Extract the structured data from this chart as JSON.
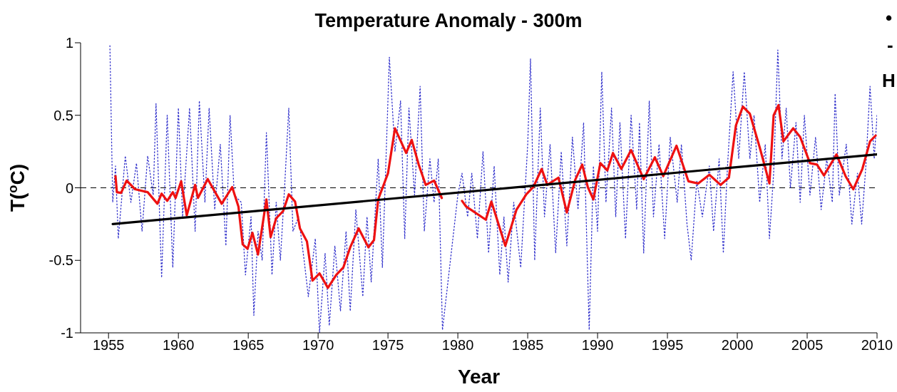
{
  "chart_data": {
    "type": "line",
    "title": "Temperature Anomaly - 300m",
    "xlabel": "Year",
    "ylabel": "T($^{o}$C)",
    "xlim": [
      1953,
      2010
    ],
    "xticks": [
      1955,
      1960,
      1965,
      1970,
      1975,
      1980,
      1985,
      1990,
      1995,
      2000,
      2005,
      2010
    ],
    "ylim": [
      -1,
      1
    ],
    "yticks": [
      -1,
      -0.5,
      0,
      0.5,
      1
    ],
    "grid": false,
    "marker": "none",
    "ref_lines": [
      {
        "axis": "y",
        "value": 0,
        "color": "#000000",
        "line_style": "dashed"
      }
    ],
    "annotations": [
      "•",
      "-",
      "H"
    ],
    "series": [
      {
        "type": "line",
        "color": "#3333cc",
        "line_style": "dotted",
        "x": [
          1955.1,
          1955.3,
          1955.5,
          1955.7,
          1956.2,
          1956.6,
          1957.0,
          1957.4,
          1957.8,
          1958.2,
          1958.4,
          1958.8,
          1959.2,
          1959.6,
          1960.0,
          1960.3,
          1960.8,
          1961.2,
          1961.5,
          1961.9,
          1962.2,
          1962.6,
          1963.0,
          1963.4,
          1963.7,
          1964.0,
          1964.5,
          1964.8,
          1965.2,
          1965.4,
          1965.7,
          1966.0,
          1966.3,
          1966.7,
          1967.0,
          1967.3,
          1967.6,
          1967.9,
          1968.2,
          1968.6,
          1969.0,
          1969.3,
          1969.8,
          1970.1,
          1970.5,
          1970.8,
          1971.2,
          1971.6,
          1972.0,
          1972.3,
          1972.7,
          1973.2,
          1973.5,
          1973.8,
          1974.3,
          1974.6,
          1975.1,
          1975.5,
          1975.9,
          1976.2,
          1976.5,
          1976.9,
          1977.3,
          1977.6,
          1978.0,
          1978.3,
          1978.6,
          1978.9,
          1980.0,
          1980.3,
          1980.7,
          1981.0,
          1981.4,
          1981.8,
          1982.2,
          1982.6,
          1983.0,
          1983.3,
          1983.6,
          1984.0,
          1984.5,
          1985.0,
          1985.2,
          1985.5,
          1985.9,
          1986.2,
          1986.6,
          1987.0,
          1987.4,
          1987.8,
          1988.2,
          1988.6,
          1989.0,
          1989.4,
          1989.7,
          1990.0,
          1990.3,
          1990.6,
          1991.0,
          1991.3,
          1991.6,
          1992.0,
          1992.4,
          1992.8,
          1993.0,
          1993.3,
          1993.7,
          1994.0,
          1994.4,
          1994.8,
          1995.2,
          1995.7,
          1996.0,
          1996.4,
          1996.7,
          1997.1,
          1997.5,
          1998.0,
          1998.3,
          1998.7,
          1999.0,
          1999.3,
          1999.7,
          2000.1,
          2000.5,
          2000.9,
          2001.2,
          2001.6,
          2002.0,
          2002.3,
          2002.6,
          2002.9,
          2003.2,
          2003.5,
          2003.8,
          2004.2,
          2004.5,
          2004.8,
          2005.2,
          2005.6,
          2006.0,
          2006.4,
          2006.8,
          2007.0,
          2007.3,
          2007.8,
          2008.2,
          2008.6,
          2008.9,
          2009.2,
          2009.5,
          2009.8,
          2010.0
        ],
        "values": [
          0.98,
          -0.1,
          0.15,
          -0.35,
          0.22,
          -0.1,
          0.17,
          -0.3,
          0.22,
          -0.05,
          0.58,
          -0.62,
          0.5,
          -0.55,
          0.55,
          -0.2,
          0.55,
          -0.3,
          0.6,
          -0.1,
          0.55,
          -0.15,
          0.3,
          -0.4,
          0.5,
          -0.05,
          -0.1,
          -0.6,
          -0.2,
          -0.88,
          -0.3,
          -0.5,
          0.38,
          -0.6,
          -0.1,
          -0.5,
          0.0,
          0.55,
          -0.3,
          -0.2,
          -0.5,
          -0.75,
          -0.35,
          -1.0,
          -0.45,
          -0.95,
          -0.4,
          -0.85,
          -0.3,
          -0.85,
          -0.15,
          -0.75,
          -0.2,
          -0.65,
          0.2,
          -0.55,
          0.9,
          0.25,
          0.6,
          -0.35,
          0.55,
          -0.05,
          0.7,
          -0.3,
          0.2,
          -0.1,
          0.2,
          -0.98,
          -0.05,
          0.1,
          -0.2,
          0.1,
          -0.35,
          0.25,
          -0.45,
          0.15,
          -0.6,
          -0.2,
          -0.65,
          -0.1,
          -0.55,
          0.3,
          0.89,
          -0.5,
          0.55,
          -0.2,
          0.3,
          -0.45,
          0.25,
          -0.4,
          0.35,
          -0.15,
          0.45,
          -0.98,
          0.15,
          -0.3,
          0.8,
          -0.1,
          0.55,
          -0.2,
          0.45,
          -0.35,
          0.5,
          -0.15,
          0.45,
          -0.45,
          0.6,
          -0.2,
          0.3,
          -0.35,
          0.35,
          -0.1,
          0.3,
          -0.25,
          -0.5,
          0.05,
          -0.2,
          0.15,
          -0.3,
          0.2,
          -0.45,
          0.15,
          0.8,
          0.2,
          0.8,
          0.2,
          0.5,
          -0.1,
          0.3,
          -0.35,
          0.1,
          0.95,
          0.2,
          0.55,
          0.0,
          0.45,
          -0.1,
          0.5,
          -0.05,
          0.35,
          -0.15,
          0.2,
          -0.1,
          0.65,
          -0.05,
          0.3,
          -0.25,
          0.1,
          -0.25,
          0.15,
          0.7,
          0.2,
          0.5
        ]
      },
      {
        "type": "line",
        "color": "#ee1111",
        "line_style": "solid",
        "x": [
          1955.5,
          1955.6,
          1955.9,
          1956.3,
          1956.9,
          1957.8,
          1958.5,
          1958.8,
          1959.2,
          1959.6,
          1959.8,
          1960.2,
          1960.6,
          1961.2,
          1961.4,
          1962.1,
          1963.1,
          1963.85,
          1964.3,
          1964.6,
          1964.95,
          1965.3,
          1965.7,
          1966.3,
          1966.6,
          1967.0,
          1967.5,
          1967.9,
          1968.35,
          1968.7,
          1969.2,
          1969.6,
          1970.1,
          1970.7,
          1971.3,
          1971.8,
          1972.3,
          1972.9,
          1973.6,
          1974.0,
          1974.3,
          1975.0,
          1975.5,
          1976.3,
          1976.7,
          1977.2,
          1977.7,
          1978.3,
          1978.85,
          1979.5,
          1980.3,
          1980.6,
          1982.0,
          1982.4,
          1983.4,
          1984.2,
          1984.9,
          1985.4,
          1986.0,
          1986.4,
          1987.2,
          1987.8,
          1988.4,
          1988.9,
          1989.3,
          1989.7,
          1990.2,
          1990.7,
          1991.1,
          1991.7,
          1992.4,
          1993.3,
          1994.1,
          1994.7,
          1995.65,
          1996.5,
          1997.2,
          1998.0,
          1998.8,
          1999.4,
          1999.9,
          2000.4,
          2000.9,
          2001.6,
          2002.3,
          2002.6,
          2002.95,
          2003.3,
          2004.0,
          2004.5,
          2005.2,
          2005.7,
          2006.2,
          2007.1,
          2007.75,
          2008.3,
          2008.95,
          2009.5,
          2009.9
        ],
        "values": [
          0.08,
          -0.03,
          -0.035,
          0.05,
          -0.01,
          -0.03,
          -0.11,
          -0.04,
          -0.09,
          -0.03,
          -0.07,
          0.045,
          -0.19,
          0.02,
          -0.07,
          0.06,
          -0.11,
          0.005,
          -0.13,
          -0.39,
          -0.42,
          -0.31,
          -0.46,
          -0.08,
          -0.34,
          -0.21,
          -0.16,
          -0.045,
          -0.095,
          -0.28,
          -0.37,
          -0.64,
          -0.59,
          -0.69,
          -0.6,
          -0.55,
          -0.41,
          -0.28,
          -0.41,
          -0.36,
          -0.08,
          0.1,
          0.41,
          0.24,
          0.33,
          0.16,
          0.02,
          0.05,
          -0.07,
          null,
          -0.09,
          -0.13,
          -0.22,
          -0.095,
          -0.4,
          -0.15,
          -0.045,
          0.005,
          0.13,
          0.02,
          0.07,
          -0.17,
          0.055,
          0.16,
          0.005,
          -0.08,
          0.17,
          0.12,
          0.24,
          0.13,
          0.26,
          0.06,
          0.21,
          0.08,
          0.29,
          0.045,
          0.03,
          0.09,
          0.02,
          0.07,
          0.43,
          0.56,
          0.51,
          0.28,
          0.03,
          0.5,
          0.57,
          0.32,
          0.41,
          0.35,
          0.17,
          0.16,
          0.085,
          0.23,
          0.08,
          -0.01,
          0.13,
          0.32,
          0.36
        ]
      },
      {
        "type": "line",
        "color": "#000000",
        "line_style": "solid",
        "x": [
          1955.3,
          2010
        ],
        "values": [
          -0.25,
          0.23
        ]
      }
    ]
  }
}
